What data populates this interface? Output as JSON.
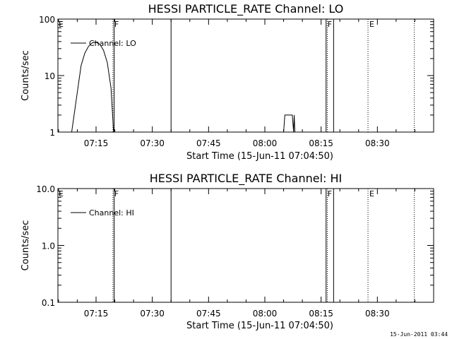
{
  "footer": {
    "timestamp": "15-Jun-2011 03:44"
  },
  "chart_data": [
    {
      "type": "line",
      "title": "HESSI PARTICLE_RATE Channel: LO",
      "xlabel": "Start Time (15-Jun-11 07:04:50)",
      "ylabel": "Counts/sec",
      "yscale": "log",
      "ylim": [
        1,
        100
      ],
      "xlim": [
        "07:04:50",
        "08:45:00"
      ],
      "x_ticks": [
        "07:15",
        "07:30",
        "07:45",
        "08:00",
        "08:15",
        "08:30"
      ],
      "y_ticks": [
        "1",
        "10",
        "100"
      ],
      "legend": {
        "entries": [
          "Channel: LO"
        ],
        "placement": "top-left"
      },
      "series": [
        {
          "name": "Channel: LO",
          "x": [
            "07:08:30",
            "07:10:00",
            "07:11:00",
            "07:12:00",
            "07:13:00",
            "07:14:00",
            "07:15:00",
            "07:16:00",
            "07:17:00",
            "07:18:00",
            "07:19:00",
            "07:19:40",
            "08:05:00",
            "08:05:20",
            "08:07:20",
            "08:07:40",
            "08:07:50",
            "08:08:00",
            "08:08:10"
          ],
          "y": [
            1,
            5,
            15,
            25,
            33,
            38,
            39,
            36,
            28,
            17,
            6,
            1,
            1,
            2,
            2,
            1,
            2,
            1,
            1
          ]
        }
      ],
      "vertical_markers": [
        {
          "time": "07:19:30",
          "label": "F",
          "style": "dotted"
        },
        {
          "time": "07:19:50",
          "label": "",
          "style": "solid"
        },
        {
          "time": "07:35:00",
          "label": "",
          "style": "solid"
        },
        {
          "time": "08:16:20",
          "label": "F",
          "style": "solid"
        },
        {
          "time": "08:16:40",
          "label": "",
          "style": "dotted"
        },
        {
          "time": "08:18:20",
          "label": "",
          "style": "solid"
        },
        {
          "time": "08:27:30",
          "label": "E",
          "style": "dotted"
        },
        {
          "time": "08:39:50",
          "label": "",
          "style": "dotted"
        }
      ],
      "edge_flag": "E"
    },
    {
      "type": "line",
      "title": "HESSI PARTICLE_RATE Channel: HI",
      "xlabel": "Start Time (15-Jun-11 07:04:50)",
      "ylabel": "Counts/sec",
      "yscale": "log",
      "ylim": [
        0.1,
        10
      ],
      "xlim": [
        "07:04:50",
        "08:45:00"
      ],
      "x_ticks": [
        "07:15",
        "07:30",
        "07:45",
        "08:00",
        "08:15",
        "08:30"
      ],
      "y_ticks": [
        "0.1",
        "1.0",
        "10.0"
      ],
      "legend": {
        "entries": [
          "Channel: HI"
        ],
        "placement": "top-left"
      },
      "series": [
        {
          "name": "Channel: HI",
          "x": [],
          "y": []
        }
      ],
      "vertical_markers": [
        {
          "time": "07:19:30",
          "label": "F",
          "style": "dotted"
        },
        {
          "time": "07:19:50",
          "label": "",
          "style": "solid"
        },
        {
          "time": "07:35:00",
          "label": "",
          "style": "solid"
        },
        {
          "time": "08:16:20",
          "label": "F",
          "style": "solid"
        },
        {
          "time": "08:16:40",
          "label": "",
          "style": "dotted"
        },
        {
          "time": "08:18:20",
          "label": "",
          "style": "solid"
        },
        {
          "time": "08:27:30",
          "label": "E",
          "style": "dotted"
        },
        {
          "time": "08:39:50",
          "label": "",
          "style": "dotted"
        }
      ],
      "edge_flag": "E"
    }
  ]
}
